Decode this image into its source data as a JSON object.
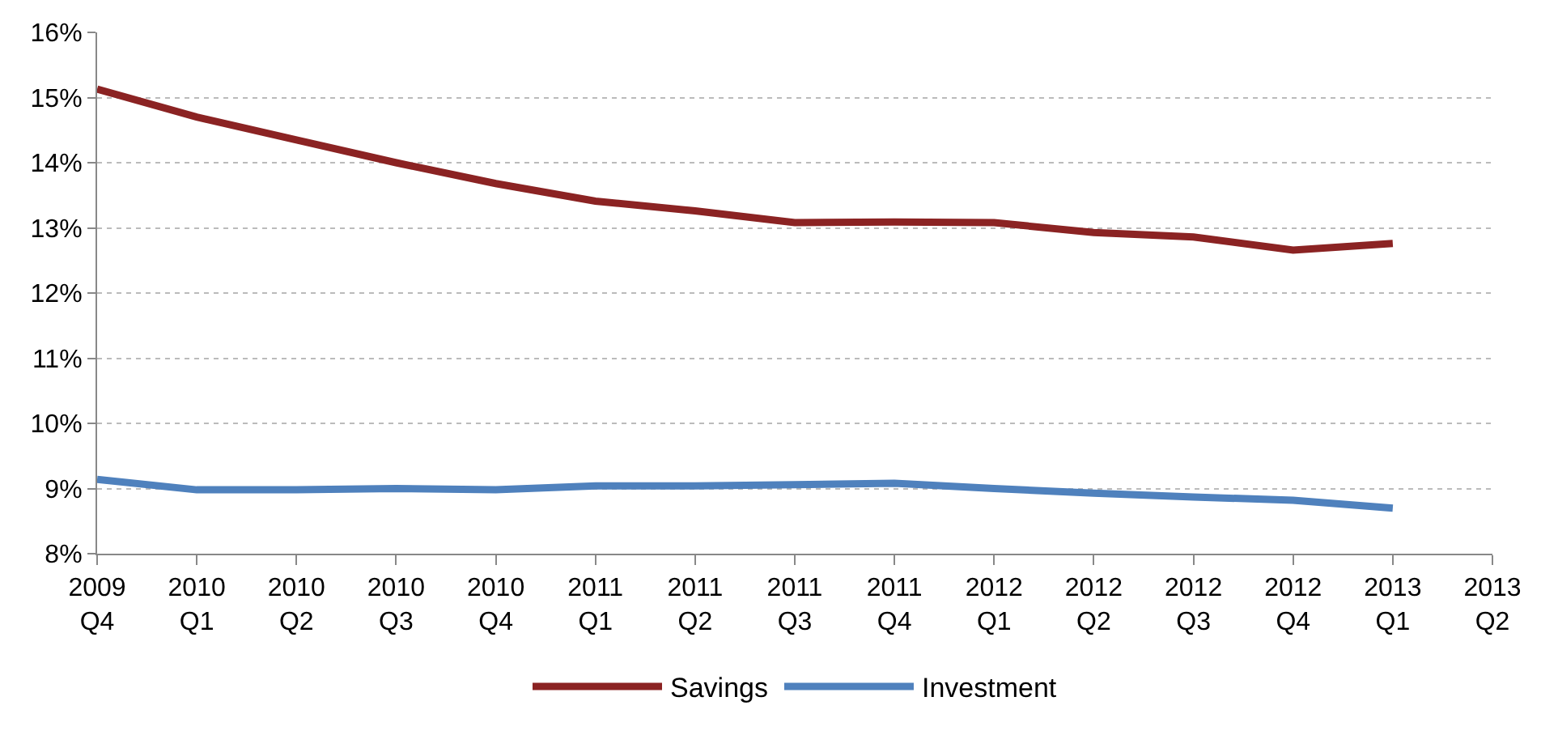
{
  "chart_data": {
    "type": "line",
    "categories": [
      "2009\nQ4",
      "2010\nQ1",
      "2010\nQ2",
      "2010\nQ3",
      "2010\nQ4",
      "2011\nQ1",
      "2011\nQ2",
      "2011\nQ3",
      "2011\nQ4",
      "2012\nQ1",
      "2012\nQ2",
      "2012\nQ3",
      "2012\nQ4",
      "2013\nQ1",
      "2013\nQ2"
    ],
    "series": [
      {
        "name": "Savings",
        "color": "#8b2323",
        "values": [
          15.13,
          14.7,
          14.35,
          14.0,
          13.68,
          13.41,
          13.26,
          13.08,
          13.09,
          13.08,
          12.93,
          12.86,
          12.66,
          12.76,
          null
        ]
      },
      {
        "name": "Investment",
        "color": "#4f81bd",
        "values": [
          9.14,
          8.98,
          8.98,
          9.0,
          8.98,
          9.04,
          9.04,
          9.06,
          9.08,
          9.0,
          8.93,
          8.87,
          8.82,
          8.7,
          null
        ]
      }
    ],
    "ylim": [
      8,
      16
    ],
    "yticks": [
      {
        "value": 8,
        "label": "8%"
      },
      {
        "value": 9,
        "label": "9%"
      },
      {
        "value": 10,
        "label": "10%"
      },
      {
        "value": 11,
        "label": "11%"
      },
      {
        "value": 12,
        "label": "12%"
      },
      {
        "value": 13,
        "label": "13%"
      },
      {
        "value": 14,
        "label": "14%"
      },
      {
        "value": 15,
        "label": "15%"
      },
      {
        "value": 16,
        "label": "16%"
      }
    ],
    "grid": "y",
    "legend": "bottom",
    "marker": "none",
    "line_style": "solid"
  }
}
